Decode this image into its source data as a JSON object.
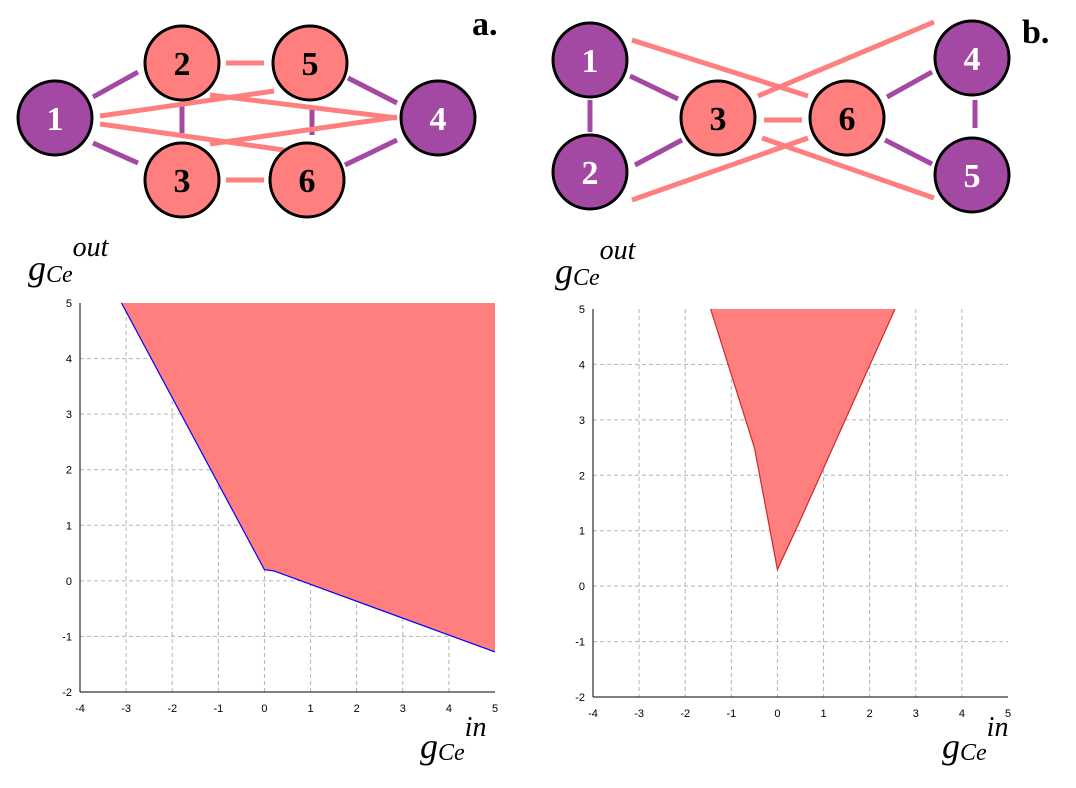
{
  "graph_a": {
    "label": "a.",
    "node_color_outer": "#a349a4",
    "node_color_inner": "#ff7f7f",
    "edge_color_purple": "#a349a4",
    "edge_color_pink": "#ff7f7f",
    "nodes": [
      {
        "id": "1",
        "type": "outer"
      },
      {
        "id": "2",
        "type": "inner"
      },
      {
        "id": "3",
        "type": "inner"
      },
      {
        "id": "4",
        "type": "outer"
      },
      {
        "id": "5",
        "type": "inner"
      },
      {
        "id": "6",
        "type": "inner"
      }
    ]
  },
  "graph_b": {
    "label": "b.",
    "nodes": [
      {
        "id": "1",
        "type": "outer"
      },
      {
        "id": "2",
        "type": "outer"
      },
      {
        "id": "3",
        "type": "inner"
      },
      {
        "id": "4",
        "type": "outer"
      },
      {
        "id": "5",
        "type": "outer"
      },
      {
        "id": "6",
        "type": "inner"
      }
    ]
  },
  "axis_text": {
    "g": "g",
    "sub": "Ce",
    "sup_out": "out",
    "sup_in": "in"
  },
  "chart_data": [
    {
      "type": "area",
      "panel": "a",
      "xlim": [
        -4,
        5
      ],
      "ylim": [
        -2,
        5
      ],
      "xticks": [
        "-4",
        "-3",
        "-2",
        "-1",
        "0",
        "1",
        "2",
        "3",
        "4",
        "5"
      ],
      "yticks": [
        "-2",
        "-1",
        "0",
        "1",
        "2",
        "3",
        "4",
        "5"
      ],
      "grid": true,
      "fill_color": "#ff7f7f",
      "boundary_color": "#0000ff",
      "boundary": [
        [
          -3.1,
          5
        ],
        [
          0,
          0.2
        ],
        [
          0.2,
          0.18
        ],
        [
          5,
          -1.28
        ]
      ]
    },
    {
      "type": "area",
      "panel": "b",
      "xlim": [
        -4,
        5
      ],
      "ylim": [
        -2,
        5
      ],
      "xticks": [
        "-4",
        "-3",
        "-2",
        "-1",
        "0",
        "1",
        "2",
        "3",
        "4",
        "5"
      ],
      "yticks": [
        "-2",
        "-1",
        "0",
        "1",
        "2",
        "3",
        "4",
        "5"
      ],
      "grid": true,
      "fill_color": "#ff7f7f",
      "boundary_color": "#cc2a2a",
      "boundary": [
        [
          -1.45,
          5
        ],
        [
          -0.5,
          2.5
        ],
        [
          0,
          0.3
        ],
        [
          0.5,
          1.2
        ],
        [
          1.2,
          2.5
        ],
        [
          2.55,
          5
        ]
      ]
    }
  ]
}
